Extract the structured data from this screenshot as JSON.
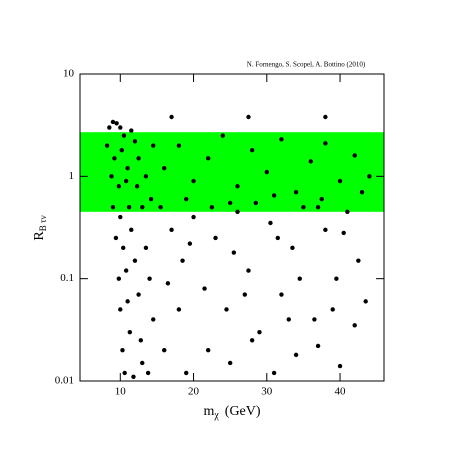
{
  "chart_data": {
    "type": "scatter",
    "annotation": "N. Fornengo, S. Scopel, A. Bottino  (2010)",
    "x_label": {
      "symbol": "m",
      "subscript": "χ",
      "unit": "(GeV)"
    },
    "y_label": {
      "symbol": "R",
      "subscript": "B τν"
    },
    "xlim": [
      4.5,
      46
    ],
    "xticks": [
      10,
      20,
      30,
      40
    ],
    "ylim": [
      0.01,
      10
    ],
    "yticks": [
      0.01,
      0.1,
      1,
      10
    ],
    "y_scale": "log",
    "band": {
      "ymin": 0.45,
      "ymax": 2.7,
      "color": "#00ff00"
    },
    "series": [
      {
        "color": "#000000",
        "x": [
          8.5,
          9,
          9.5,
          10,
          10.5,
          8.2,
          9.2,
          10.2,
          11,
          8.8,
          9.8,
          10.8,
          9,
          10,
          11.2,
          9.4,
          10.4,
          11.5,
          9.8,
          10.8,
          12,
          10,
          11,
          12.5,
          10.3,
          11.3,
          12.8,
          10.6,
          11.8,
          13,
          12.3,
          13,
          13.5,
          14,
          14.5,
          13.8,
          14.2,
          12.5,
          13.5,
          14.5,
          11.5,
          12,
          16,
          18,
          20,
          22,
          24,
          26,
          28,
          30,
          32,
          34,
          36,
          38,
          40,
          42,
          44,
          19,
          25,
          31,
          37,
          43,
          17,
          27.5,
          38,
          15.5,
          17,
          18.5,
          20,
          21.5,
          23,
          24.5,
          26,
          27.5,
          29,
          30.5,
          32,
          33.5,
          35,
          36.5,
          38,
          39.5,
          41,
          42.5,
          43.5,
          16,
          19,
          22,
          25,
          28,
          31,
          34,
          37,
          40,
          16.5,
          19.5,
          22.5,
          25.5,
          28.5,
          31.5,
          34.5,
          37.5,
          40.5,
          42,
          18,
          27,
          33,
          39
        ],
        "y": [
          3.0,
          3.4,
          3.3,
          3.0,
          2.5,
          2.0,
          1.5,
          1.8,
          1.2,
          1.0,
          0.8,
          0.9,
          0.5,
          0.4,
          0.5,
          0.25,
          0.2,
          0.3,
          0.1,
          0.12,
          0.15,
          0.05,
          0.06,
          0.07,
          0.02,
          0.03,
          0.025,
          0.012,
          0.011,
          0.015,
          0.8,
          0.5,
          0.2,
          0.1,
          0.04,
          0.012,
          0.6,
          1.5,
          1.0,
          2.0,
          2.8,
          2.2,
          1.2,
          2.0,
          0.9,
          1.5,
          2.5,
          0.8,
          1.8,
          1.1,
          2.3,
          0.7,
          1.4,
          2.1,
          0.9,
          1.6,
          1.0,
          0.6,
          0.55,
          0.65,
          0.5,
          0.7,
          3.8,
          3.8,
          3.8,
          0.5,
          0.3,
          0.15,
          0.4,
          0.08,
          0.25,
          0.05,
          0.45,
          0.12,
          0.03,
          0.35,
          0.07,
          0.2,
          0.5,
          0.04,
          0.3,
          0.1,
          0.45,
          0.15,
          0.06,
          0.02,
          0.012,
          0.02,
          0.015,
          0.025,
          0.012,
          0.018,
          0.022,
          0.014,
          0.09,
          0.22,
          0.5,
          0.18,
          0.55,
          0.25,
          0.1,
          0.6,
          0.28,
          0.035,
          0.05,
          0.07,
          0.04,
          0.05
        ]
      }
    ]
  }
}
